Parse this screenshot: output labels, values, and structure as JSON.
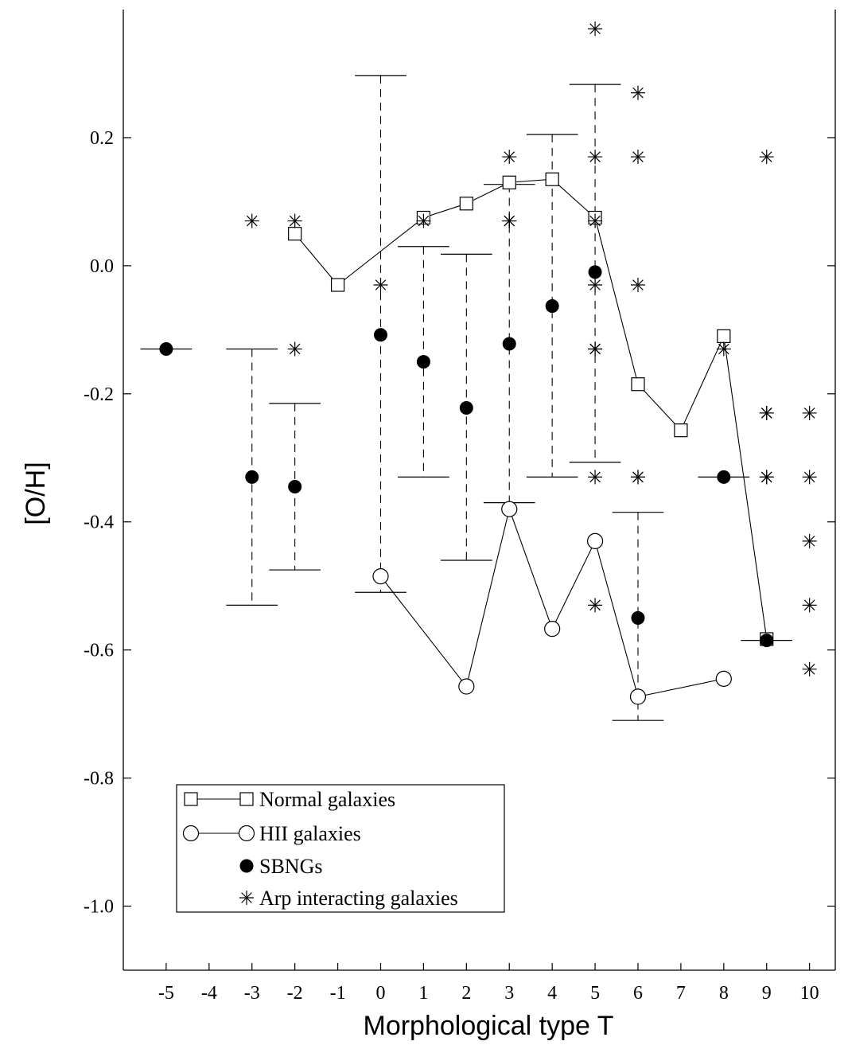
{
  "chart_data": {
    "type": "scatter",
    "xlabel": "Morphological type T",
    "ylabel": "[O/H]",
    "x_ticks": [
      -5,
      -4,
      -3,
      -2,
      -1,
      0,
      1,
      2,
      3,
      4,
      5,
      6,
      7,
      8,
      9,
      10
    ],
    "y_ticks": [
      0.2,
      0.0,
      -0.2,
      -0.4,
      -0.6,
      -0.8,
      -1.0
    ],
    "y_tick_labels": [
      "0.2",
      "0.0",
      "-0.2",
      "-0.4",
      "-0.6",
      "-0.8",
      "-1.0"
    ],
    "xlim": [
      -6,
      10.6
    ],
    "ylim": [
      -1.1,
      0.4
    ],
    "series": [
      {
        "name": "Normal galaxies",
        "marker": "open-square",
        "line": true,
        "points": [
          [
            -2,
            0.05
          ],
          [
            -1,
            -0.03
          ],
          [
            1,
            0.075
          ],
          [
            2,
            0.097
          ],
          [
            3,
            0.13
          ],
          [
            4,
            0.135
          ],
          [
            5,
            0.075
          ],
          [
            6,
            -0.185
          ],
          [
            7,
            -0.257
          ],
          [
            8,
            -0.11
          ],
          [
            9,
            -0.583
          ]
        ]
      },
      {
        "name": "HII galaxies",
        "marker": "open-circle",
        "line": true,
        "points": [
          [
            0,
            -0.485
          ],
          [
            2,
            -0.657
          ],
          [
            3,
            -0.38
          ],
          [
            4,
            -0.567
          ],
          [
            5,
            -0.43
          ],
          [
            6,
            -0.673
          ],
          [
            8,
            -0.645
          ]
        ]
      },
      {
        "name": "SBNGs",
        "marker": "filled-circle",
        "line": false,
        "points": [
          [
            -5,
            -0.13
          ],
          [
            -3,
            -0.33
          ],
          [
            -2,
            -0.345
          ],
          [
            0,
            -0.108
          ],
          [
            1,
            -0.15
          ],
          [
            2,
            -0.222
          ],
          [
            3,
            -0.122
          ],
          [
            4,
            -0.063
          ],
          [
            5,
            -0.01
          ],
          [
            6,
            -0.55
          ],
          [
            8,
            -0.33
          ],
          [
            9,
            -0.585
          ]
        ],
        "error_bars": [
          {
            "x": -5,
            "low": -0.13,
            "high": -0.13,
            "cap_left": -5.6,
            "cap_right": -4.4,
            "dashed": false
          },
          {
            "x": -3,
            "low": -0.53,
            "high": -0.13,
            "cap_left": -3.6,
            "cap_right": -2.4,
            "dashed": true
          },
          {
            "x": -2,
            "low": -0.475,
            "high": -0.215,
            "cap_left": -2.6,
            "cap_right": -1.4,
            "dashed": true
          },
          {
            "x": 0,
            "low": -0.51,
            "high": 0.297,
            "cap_left": -0.6,
            "cap_right": 0.6,
            "dashed": true
          },
          {
            "x": 1,
            "low": -0.33,
            "high": 0.03,
            "cap_left": 0.4,
            "cap_right": 1.6,
            "dashed": true
          },
          {
            "x": 2,
            "low": -0.46,
            "high": 0.018,
            "cap_left": 1.4,
            "cap_right": 2.6,
            "dashed": true
          },
          {
            "x": 3,
            "low": -0.37,
            "high": 0.127,
            "cap_left": 2.4,
            "cap_right": 3.6,
            "dashed": true
          },
          {
            "x": 4,
            "low": -0.33,
            "high": 0.205,
            "cap_left": 3.4,
            "cap_right": 4.6,
            "dashed": true
          },
          {
            "x": 5,
            "low": -0.307,
            "high": 0.283,
            "cap_left": 4.4,
            "cap_right": 5.6,
            "dashed": true
          },
          {
            "x": 6,
            "low": -0.71,
            "high": -0.385,
            "cap_left": 5.4,
            "cap_right": 6.6,
            "dashed": true
          },
          {
            "x": 8,
            "low": -0.33,
            "high": -0.33,
            "cap_left": 7.4,
            "cap_right": 8.6,
            "dashed": false
          },
          {
            "x": 9,
            "low": -0.585,
            "high": -0.585,
            "cap_left": 8.4,
            "cap_right": 9.6,
            "dashed": false
          }
        ]
      },
      {
        "name": "Arp interacting galaxies",
        "marker": "asterisk",
        "line": false,
        "points": [
          [
            -3,
            0.07
          ],
          [
            -2,
            0.07
          ],
          [
            -2,
            -0.13
          ],
          [
            0,
            -0.03
          ],
          [
            1,
            0.07
          ],
          [
            3,
            0.17
          ],
          [
            3,
            0.07
          ],
          [
            3,
            0.07
          ],
          [
            5,
            0.37
          ],
          [
            5,
            0.17
          ],
          [
            5,
            0.07
          ],
          [
            5,
            -0.03
          ],
          [
            5,
            -0.13
          ],
          [
            5,
            -0.13
          ],
          [
            5,
            -0.33
          ],
          [
            5,
            -0.53
          ],
          [
            6,
            0.27
          ],
          [
            6,
            0.17
          ],
          [
            6,
            -0.03
          ],
          [
            6,
            -0.33
          ],
          [
            6,
            -0.33
          ],
          [
            8,
            -0.13
          ],
          [
            9,
            0.17
          ],
          [
            9,
            -0.23
          ],
          [
            9,
            -0.23
          ],
          [
            9,
            -0.33
          ],
          [
            9,
            -0.33
          ],
          [
            10,
            -0.23
          ],
          [
            10,
            -0.33
          ],
          [
            10,
            -0.43
          ],
          [
            10,
            -0.53
          ],
          [
            10,
            -0.63
          ]
        ]
      }
    ],
    "legend": {
      "placement": "bottom-left",
      "entries": [
        "Normal galaxies",
        "HII galaxies",
        "SBNGs",
        "Arp interacting galaxies"
      ]
    },
    "grid": false
  }
}
